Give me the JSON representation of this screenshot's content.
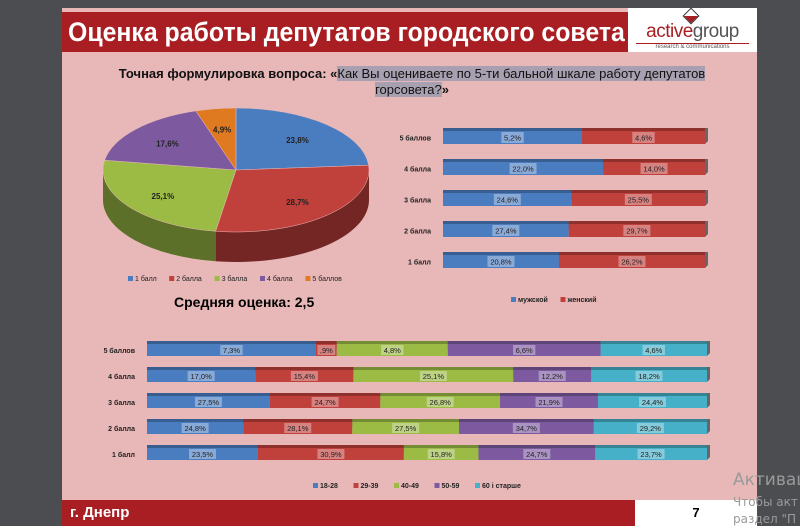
{
  "header": {
    "title": "Оценка работы депутатов городского совета",
    "logo": "activegroup",
    "logo_tagline": "research & communications"
  },
  "question": {
    "label": "Точная формулировка вопроса: «",
    "text": "Как Вы оцениваете по 5-ти бальной шкале работу депутатов горсовета?",
    "close": "»"
  },
  "average": "Средняя оценка: 2,5",
  "footer": {
    "city": "г. Днепр",
    "page": "7"
  },
  "watermark": {
    "line1": "Активац",
    "line2": "Чтобы акт",
    "line3": "раздел \"П"
  },
  "chart_data": [
    {
      "type": "pie",
      "categories": [
        "1 балл",
        "2 балла",
        "3 балла",
        "4 балла",
        "5 баллов"
      ],
      "values": [
        23.8,
        28.7,
        25.1,
        17.6,
        4.9
      ],
      "labels": [
        "23,8%",
        "28,7%",
        "25,1%",
        "17,6%",
        "4,9%"
      ],
      "colors": [
        "#4a7cc0",
        "#c0403c",
        "#9bbb45",
        "#7d5aa0",
        "#e07a20"
      ],
      "legend": "bottom",
      "style": "3d"
    },
    {
      "type": "bar",
      "stacked": "100%",
      "orientation": "horizontal",
      "categories": [
        "5 баллов",
        "4 балла",
        "3 балла",
        "2 балла",
        "1 балл"
      ],
      "series": [
        {
          "name": "мужской",
          "values": [
            5.2,
            22.0,
            24.6,
            27.4,
            20.8
          ],
          "labels": [
            "5,2%",
            "22,0%",
            "24,6%",
            "27,4%",
            "20,8%"
          ],
          "color": "#4a7cc0"
        },
        {
          "name": "женский",
          "values": [
            4.6,
            14.0,
            25.5,
            29.7,
            26.2
          ],
          "labels": [
            "4,6%",
            "14,0%",
            "25,5%",
            "29,7%",
            "26,2%"
          ],
          "color": "#c0403c"
        }
      ],
      "legend": "bottom"
    },
    {
      "type": "bar",
      "stacked": "100%",
      "orientation": "horizontal",
      "categories": [
        "5 баллов",
        "4 балла",
        "3 балла",
        "2 балла",
        "1 балл"
      ],
      "series": [
        {
          "name": "18-28",
          "values": [
            7.3,
            17.0,
            27.5,
            24.8,
            23.5
          ],
          "labels": [
            "7,3%",
            "17,0%",
            "27,5%",
            "24,8%",
            "23,5%"
          ],
          "color": "#4a7cc0"
        },
        {
          "name": "29-39",
          "values": [
            0.9,
            15.4,
            24.7,
            28.1,
            30.9
          ],
          "labels": [
            ",9%",
            "15,4%",
            "24,7%",
            "28,1%",
            "30,9%"
          ],
          "color": "#c0403c"
        },
        {
          "name": "40-49",
          "values": [
            4.8,
            25.1,
            26.8,
            27.5,
            15.8
          ],
          "labels": [
            "4,8%",
            "25,1%",
            "26,8%",
            "27,5%",
            "15,8%"
          ],
          "color": "#9bbb45"
        },
        {
          "name": "50-59",
          "values": [
            6.6,
            12.2,
            21.9,
            34.7,
            24.7
          ],
          "labels": [
            "6,6%",
            "12,2%",
            "21,9%",
            "34,7%",
            "24,7%"
          ],
          "color": "#7d5aa0"
        },
        {
          "name": "60 і старше",
          "values": [
            4.6,
            18.2,
            24.4,
            29.2,
            23.7
          ],
          "labels": [
            "4,6%",
            "18,2%",
            "24,4%",
            "29,2%",
            "23,7%"
          ],
          "color": "#45b0c8"
        }
      ],
      "legend": "bottom"
    }
  ]
}
